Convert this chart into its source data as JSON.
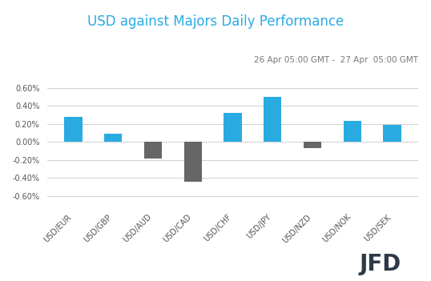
{
  "title": "USD against Majors Daily Performance",
  "subtitle": "26 Apr 05:00 GMT -  27 Apr  05:00 GMT",
  "categories": [
    "USD/EUR",
    "USD/GBP",
    "USD/AUD",
    "USD/CAD",
    "USD/CHF",
    "USD/JPY",
    "USD/NZD",
    "USD/NOK",
    "USD/SEK"
  ],
  "values": [
    0.0028,
    0.0009,
    -0.0018,
    -0.0044,
    0.0032,
    0.005,
    -0.0007,
    0.0023,
    0.0019
  ],
  "bar_colors": [
    "#29abe2",
    "#29abe2",
    "#666666",
    "#666666",
    "#29abe2",
    "#29abe2",
    "#666666",
    "#29abe2",
    "#29abe2"
  ],
  "ylim": [
    -0.007,
    0.007
  ],
  "ytick_values": [
    -0.006,
    -0.004,
    -0.002,
    0.0,
    0.002,
    0.004,
    0.006
  ],
  "background_color": "#ffffff",
  "title_color": "#29abe2",
  "subtitle_color": "#777777",
  "grid_color": "#d0d0d0",
  "title_fontsize": 12,
  "subtitle_fontsize": 7.5,
  "tick_label_fontsize": 7,
  "ytick_label_fontsize": 7,
  "bar_width": 0.45,
  "jfd_text": "JFD",
  "jfd_color": "#2d3a4a",
  "jfd_fontsize": 20
}
